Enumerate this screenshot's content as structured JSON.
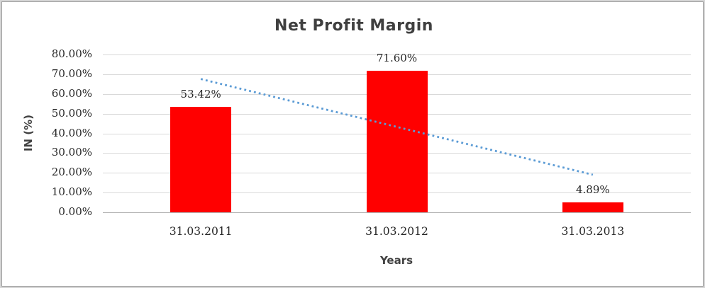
{
  "chart_data": {
    "type": "bar",
    "title": "Net Profit Margin",
    "xlabel": "Years",
    "ylabel": "IN (%)",
    "categories": [
      "31.03.2011",
      "31.03.2012",
      "31.03.2013"
    ],
    "values": [
      53.42,
      71.6,
      4.89
    ],
    "data_labels": [
      "53.42%",
      "71.60%",
      "4.89%"
    ],
    "yticks": [
      {
        "value": 80,
        "label": "80.00%"
      },
      {
        "value": 70,
        "label": "70.00%"
      },
      {
        "value": 60,
        "label": "60.00%"
      },
      {
        "value": 50,
        "label": "50.00%"
      },
      {
        "value": 40,
        "label": "40.00%"
      },
      {
        "value": 30,
        "label": "30.00%"
      },
      {
        "value": 20,
        "label": "20.00%"
      },
      {
        "value": 10,
        "label": "10.00%"
      },
      {
        "value": 0,
        "label": "0.00%"
      }
    ],
    "ylim": [
      0,
      80
    ],
    "grid": true,
    "legend": "none",
    "colors": {
      "bar": "#ff0000",
      "trendline": "#5b9bd5",
      "gridline": "#d9d9d9",
      "axis_line": "#b3b3b3",
      "title_text": "#3f3f3f",
      "label_text": "#262626"
    },
    "trendline": {
      "type": "linear",
      "style": "dotted",
      "start_value": 67.57,
      "end_value": 19.04
    }
  }
}
